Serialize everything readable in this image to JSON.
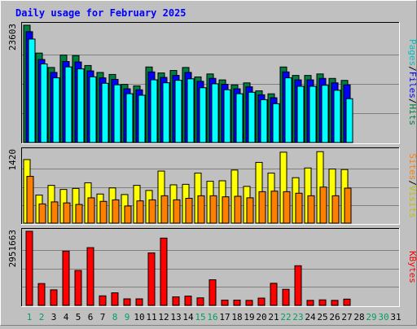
{
  "chart_data": {
    "type": "bar",
    "title": "Daily usage for February 2025",
    "days": [
      "1",
      "2",
      "3",
      "4",
      "5",
      "6",
      "7",
      "8",
      "9",
      "10",
      "11",
      "12",
      "13",
      "14",
      "15",
      "16",
      "17",
      "18",
      "19",
      "20",
      "21",
      "22",
      "23",
      "24",
      "25",
      "26",
      "27",
      "28",
      "29",
      "30",
      "31"
    ],
    "weekend_days": [
      "1",
      "2",
      "8",
      "9",
      "15",
      "16",
      "22",
      "23",
      "29",
      "30"
    ],
    "panels": [
      {
        "id": "hits-files-pages",
        "max_label": "23603",
        "ymax": 23603,
        "axis_labels": [
          "Pages",
          "/",
          "Files",
          "/",
          "Hits"
        ],
        "series": [
          {
            "name": "Hits",
            "color": "#008040",
            "values": [
              23603,
              18000,
              15100,
              17600,
              17500,
              15500,
              14100,
              13700,
              11700,
              11400,
              15200,
              14000,
              14500,
              15100,
              13200,
              13800,
              12600,
              11600,
              12000,
              10400,
              9800,
              15200,
              13500,
              13500,
              13800,
              12900,
              12500,
              0,
              0,
              0,
              0
            ]
          },
          {
            "name": "Files",
            "color": "#0000ff",
            "values": [
              22800,
              17200,
              14600,
              16800,
              16700,
              14900,
              13500,
              13200,
              11300,
              11100,
              14700,
              13600,
              14000,
              14600,
              12800,
              13400,
              12200,
              11300,
              11700,
              10100,
              9500,
              14700,
              13100,
              13100,
              13400,
              12500,
              12100,
              0,
              0,
              0,
              0
            ]
          },
          {
            "name": "Pages",
            "color": "#00ffff",
            "values": [
              21800,
              16800,
              14000,
              16200,
              15800,
              14200,
              12900,
              12600,
              10800,
              10500,
              13600,
              13000,
              13500,
              13800,
              12000,
              12800,
              11600,
              10800,
              11100,
              9600,
              8800,
              14000,
              12300,
              12300,
              12500,
              11500,
              9800,
              0,
              0,
              0,
              0
            ]
          }
        ]
      },
      {
        "id": "visits-sites",
        "max_label": "1420",
        "ymax": 1420,
        "axis_labels": [
          "Sites",
          "/",
          "Visits"
        ],
        "series": [
          {
            "name": "Visits",
            "color": "#ffff00",
            "values": [
              1245,
              550,
              740,
              660,
              680,
              790,
              570,
              690,
              560,
              740,
              640,
              1020,
              750,
              760,
              980,
              820,
              830,
              1040,
              720,
              1190,
              980,
              1390,
              890,
              1080,
              1400,
              1060,
              1050,
              0,
              0,
              0,
              0
            ]
          },
          {
            "name": "Sites",
            "color": "#ff8000",
            "values": [
              980,
              440,
              480,
              460,
              430,
              560,
              490,
              520,
              400,
              500,
              520,
              600,
              520,
              550,
              600,
              600,
              580,
              590,
              560,
              680,
              690,
              680,
              650,
              600,
              770,
              600,
              750,
              0,
              0,
              0,
              0
            ]
          }
        ]
      },
      {
        "id": "kbytes",
        "max_label": "2951663",
        "ymax": 2951663,
        "axis_labels": [
          "KBytes"
        ],
        "series": [
          {
            "name": "KBytes",
            "color": "#ff0000",
            "values": [
              2951663,
              870000,
              620000,
              2160000,
              1390000,
              2300000,
              380000,
              500000,
              260000,
              260000,
              2090000,
              2680000,
              340000,
              370000,
              300000,
              1020000,
              210000,
              210000,
              200000,
              290000,
              880000,
              640000,
              1580000,
              200000,
              220000,
              200000,
              250000,
              0,
              0,
              0,
              0
            ]
          }
        ]
      }
    ]
  }
}
